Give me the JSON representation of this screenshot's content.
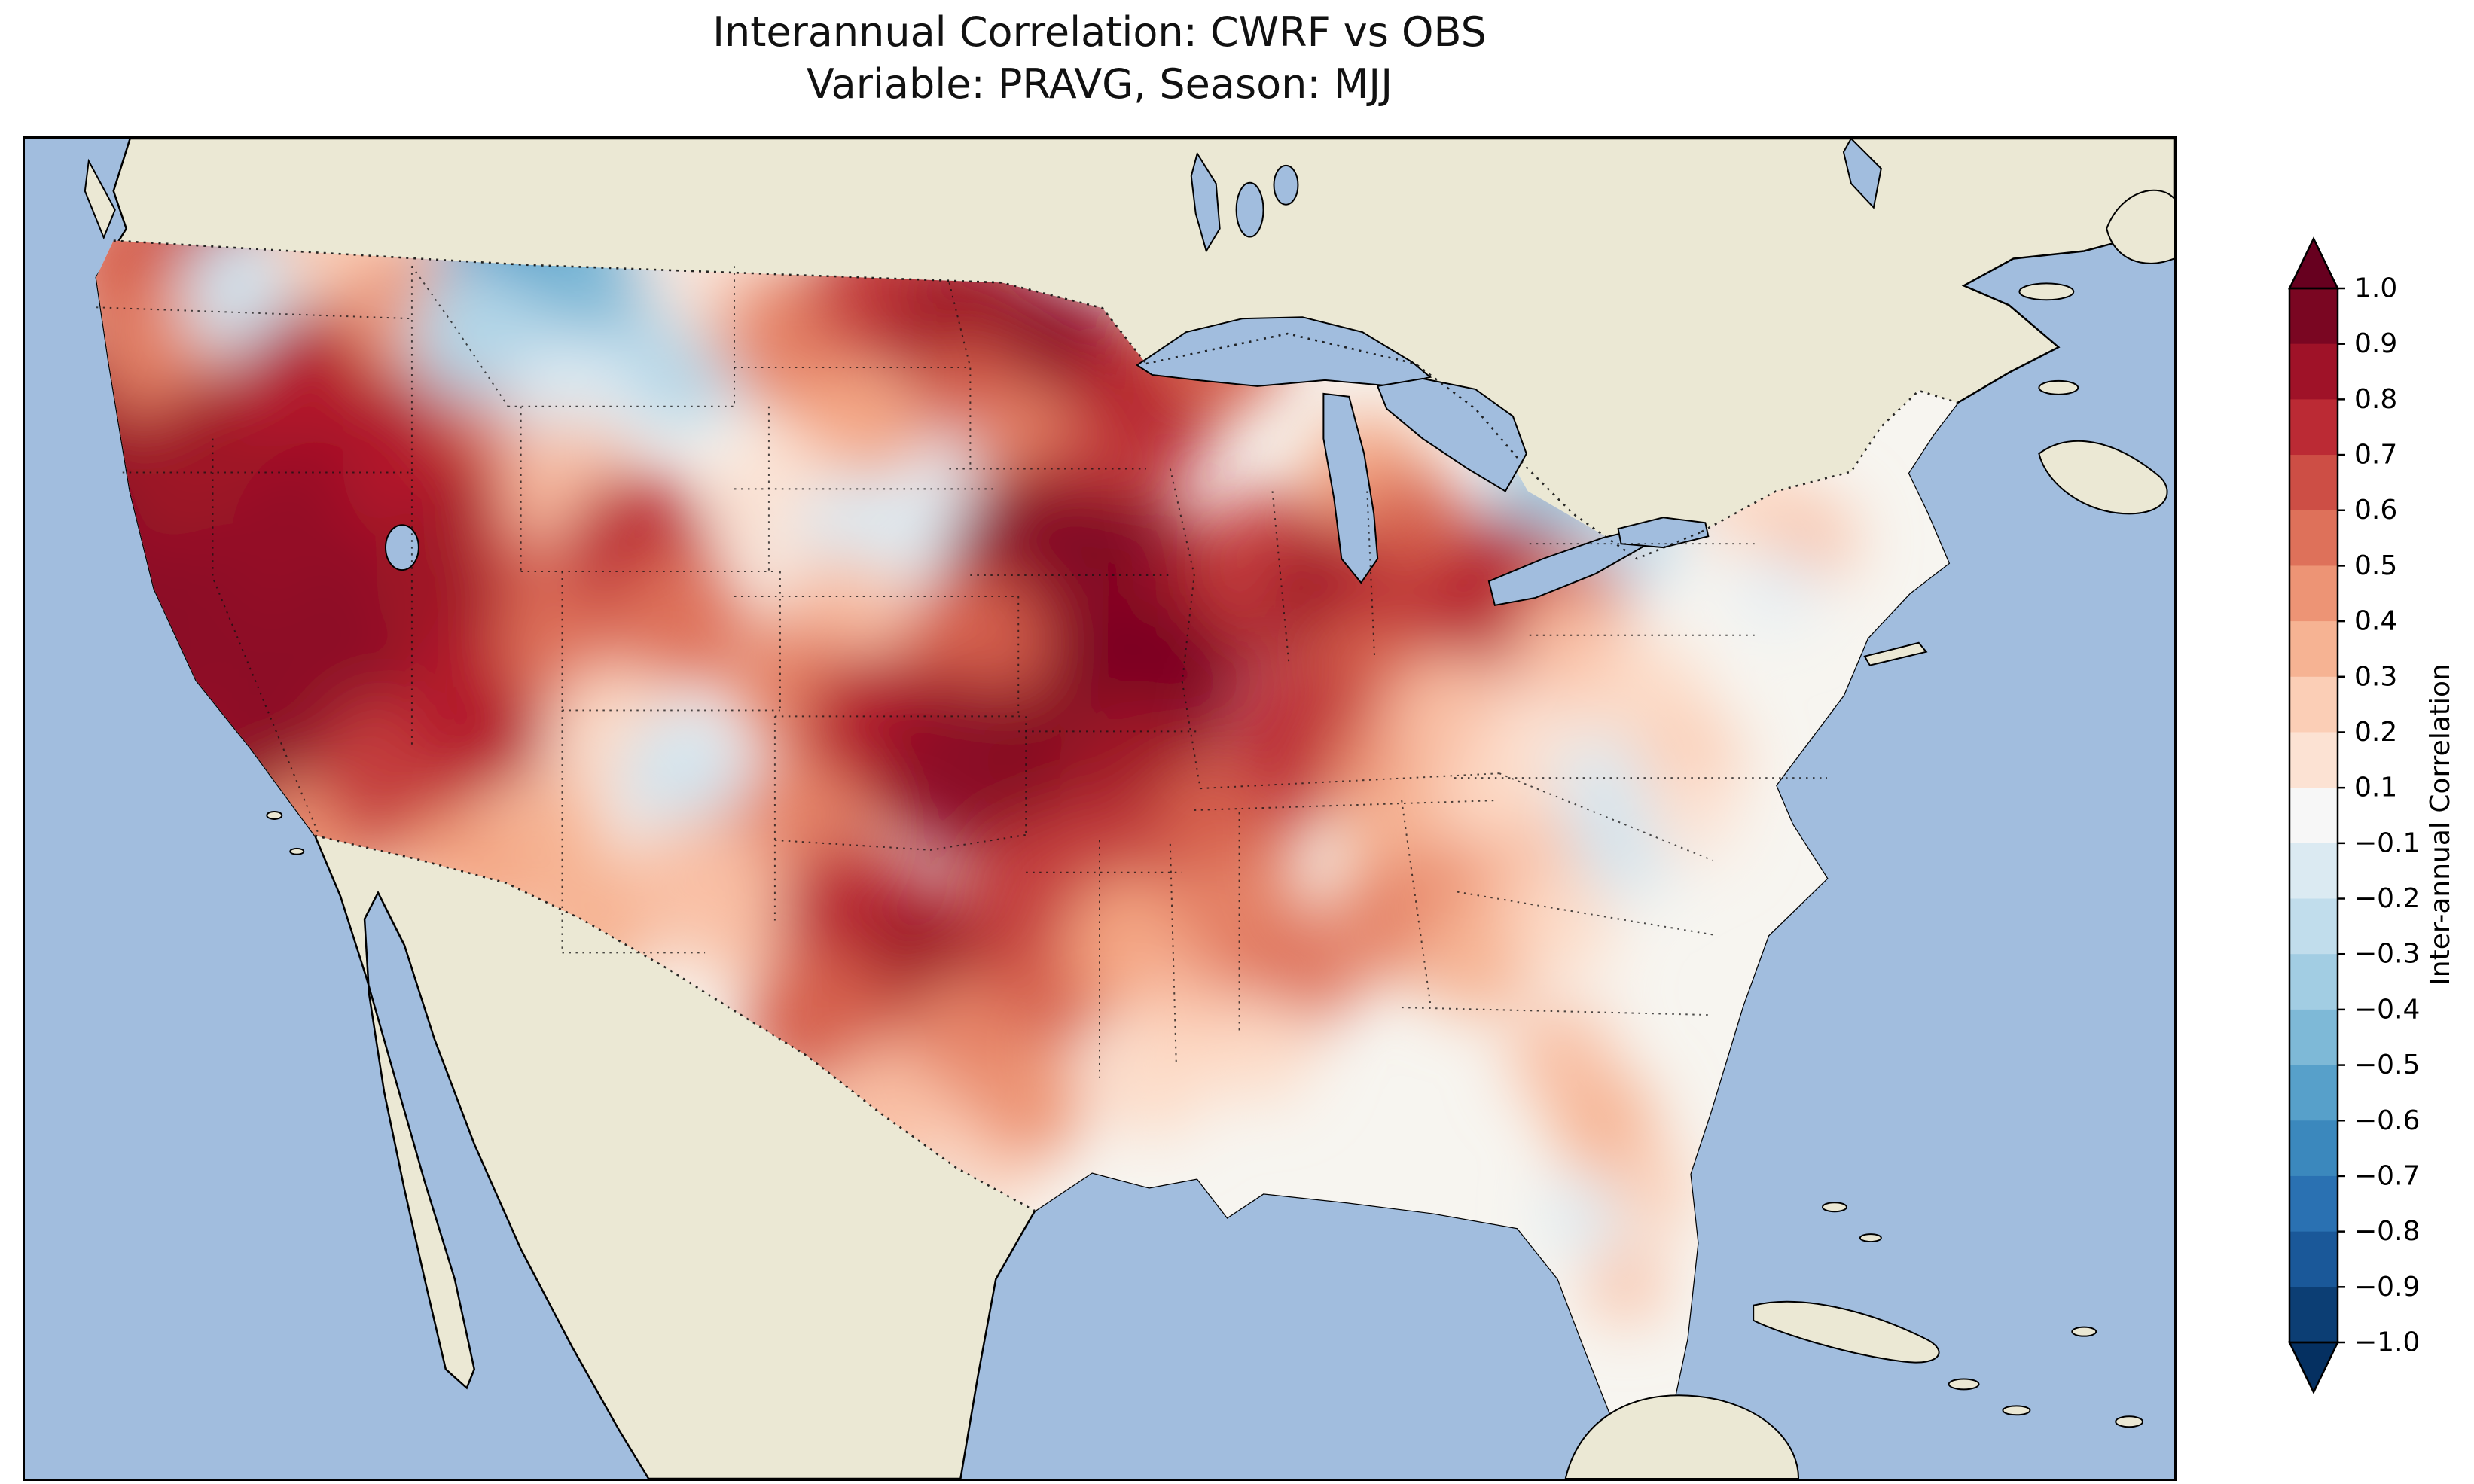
{
  "title": {
    "line1": "Interannual Correlation: CWRF vs OBS",
    "line2": "Variable: PRAVG, Season: MJJ"
  },
  "colorbar": {
    "label": "Inter-annual Correlation",
    "ticks": [
      "1.0",
      "0.9",
      "0.8",
      "0.7",
      "0.6",
      "0.5",
      "0.4",
      "0.3",
      "0.2",
      "0.1",
      "−0.1",
      "−0.2",
      "−0.3",
      "−0.4",
      "−0.5",
      "−0.6",
      "−0.7",
      "−0.8",
      "−0.9",
      "−1.0"
    ]
  },
  "colors": {
    "ocean": "#a1bdde",
    "land": "#ebe8d4",
    "field_base": "#f7f5f0",
    "frame": "#000000",
    "colormap_stops": [
      [
        -1,
        "#053061"
      ],
      [
        -0.8,
        "#2166ac"
      ],
      [
        -0.6,
        "#4393c3"
      ],
      [
        -0.4,
        "#92c5de"
      ],
      [
        -0.2,
        "#d1e5f0"
      ],
      [
        0,
        "#f7f7f7"
      ],
      [
        0.2,
        "#fddbc7"
      ],
      [
        0.4,
        "#f4a582"
      ],
      [
        0.6,
        "#d6604d"
      ],
      [
        0.8,
        "#b2182b"
      ],
      [
        1,
        "#67001f"
      ]
    ]
  },
  "chart_data": {
    "type": "heatmap",
    "title": "Interannual Correlation: CWRF vs OBS",
    "subtitle": "Variable: PRAVG, Season: MJJ",
    "model": "CWRF",
    "reference": "OBS",
    "variable": "PRAVG",
    "season": "MJJ",
    "colorbar_label": "Inter-annual Correlation",
    "value_range": [
      -1.0,
      1.0
    ],
    "colorbar_ticks": [
      1.0,
      0.9,
      0.8,
      0.7,
      0.6,
      0.5,
      0.4,
      0.3,
      0.2,
      0.1,
      -0.1,
      -0.2,
      -0.3,
      -0.4,
      -0.5,
      -0.6,
      -0.7,
      -0.8,
      -0.9,
      -1.0
    ],
    "field_points": [
      [
        0.055,
        0.1,
        110,
        0.6
      ],
      [
        0.09,
        0.06,
        80,
        0.7
      ],
      [
        0.035,
        0.21,
        110,
        0.85
      ],
      [
        0.07,
        0.16,
        100,
        0.5
      ],
      [
        0.105,
        0.115,
        90,
        -0.2
      ],
      [
        0.145,
        0.08,
        80,
        0.25
      ],
      [
        0.05,
        0.31,
        130,
        0.9
      ],
      [
        0.095,
        0.25,
        130,
        0.85
      ],
      [
        0.14,
        0.19,
        120,
        0.8
      ],
      [
        0.185,
        0.13,
        100,
        0.45
      ],
      [
        0.06,
        0.41,
        120,
        0.92
      ],
      [
        0.1,
        0.36,
        130,
        0.9
      ],
      [
        0.145,
        0.3,
        140,
        0.88
      ],
      [
        0.19,
        0.245,
        120,
        0.8
      ],
      [
        0.225,
        0.19,
        100,
        0.55
      ],
      [
        0.085,
        0.475,
        100,
        0.85
      ],
      [
        0.125,
        0.44,
        120,
        0.9
      ],
      [
        0.165,
        0.385,
        140,
        0.9
      ],
      [
        0.205,
        0.33,
        120,
        0.85
      ],
      [
        0.245,
        0.295,
        100,
        0.65
      ],
      [
        0.135,
        0.525,
        90,
        0.45
      ],
      [
        0.175,
        0.475,
        110,
        0.7
      ],
      [
        0.215,
        0.42,
        110,
        0.8
      ],
      [
        0.255,
        0.375,
        100,
        0.55
      ],
      [
        0.235,
        0.095,
        120,
        -0.55
      ],
      [
        0.275,
        0.13,
        110,
        -0.45
      ],
      [
        0.21,
        0.145,
        90,
        -0.3
      ],
      [
        0.305,
        0.165,
        90,
        -0.3
      ],
      [
        0.255,
        0.195,
        90,
        -0.15
      ],
      [
        0.315,
        0.095,
        80,
        0.1
      ],
      [
        0.345,
        0.135,
        90,
        0.25
      ],
      [
        0.255,
        0.26,
        90,
        0.3
      ],
      [
        0.285,
        0.305,
        100,
        0.75
      ],
      [
        0.305,
        0.36,
        90,
        0.55
      ],
      [
        0.275,
        0.445,
        90,
        0.2
      ],
      [
        0.305,
        0.475,
        80,
        -0.2
      ],
      [
        0.24,
        0.525,
        90,
        0.35
      ],
      [
        0.2,
        0.555,
        90,
        0.4
      ],
      [
        0.185,
        0.605,
        80,
        0.2
      ],
      [
        0.265,
        0.585,
        90,
        0.35
      ],
      [
        0.31,
        0.55,
        80,
        0.3
      ],
      [
        0.36,
        0.15,
        100,
        0.5
      ],
      [
        0.4,
        0.115,
        100,
        0.7
      ],
      [
        0.44,
        0.14,
        110,
        0.85
      ],
      [
        0.48,
        0.17,
        110,
        0.9
      ],
      [
        0.52,
        0.2,
        100,
        0.8
      ],
      [
        0.555,
        0.155,
        90,
        0.6
      ],
      [
        0.44,
        0.205,
        90,
        0.6
      ],
      [
        0.385,
        0.22,
        90,
        0.4
      ],
      [
        0.35,
        0.27,
        90,
        0.15
      ],
      [
        0.39,
        0.3,
        90,
        -0.15
      ],
      [
        0.435,
        0.265,
        80,
        -0.1
      ],
      [
        0.47,
        0.24,
        90,
        0.5
      ],
      [
        0.5,
        0.27,
        100,
        0.7
      ],
      [
        0.47,
        0.315,
        120,
        0.9
      ],
      [
        0.51,
        0.335,
        120,
        0.95
      ],
      [
        0.55,
        0.35,
        110,
        0.85
      ],
      [
        0.48,
        0.38,
        110,
        0.9
      ],
      [
        0.52,
        0.41,
        120,
        0.95
      ],
      [
        0.44,
        0.38,
        100,
        0.6
      ],
      [
        0.38,
        0.36,
        90,
        0.3
      ],
      [
        0.36,
        0.41,
        90,
        0.5
      ],
      [
        0.4,
        0.445,
        110,
        0.8
      ],
      [
        0.44,
        0.47,
        120,
        0.9
      ],
      [
        0.485,
        0.465,
        110,
        0.92
      ],
      [
        0.52,
        0.48,
        110,
        0.85
      ],
      [
        0.555,
        0.52,
        100,
        0.6
      ],
      [
        0.5,
        0.55,
        100,
        0.7
      ],
      [
        0.36,
        0.52,
        100,
        0.5
      ],
      [
        0.33,
        0.575,
        90,
        0.3
      ],
      [
        0.385,
        0.58,
        100,
        0.75
      ],
      [
        0.42,
        0.62,
        110,
        0.85
      ],
      [
        0.37,
        0.66,
        100,
        0.6
      ],
      [
        0.44,
        0.68,
        100,
        0.5
      ],
      [
        0.4,
        0.73,
        90,
        0.3
      ],
      [
        0.445,
        0.765,
        80,
        0.2
      ],
      [
        0.415,
        0.825,
        70,
        -0.25
      ],
      [
        0.465,
        0.72,
        80,
        0.45
      ],
      [
        0.48,
        0.625,
        90,
        0.6
      ],
      [
        0.47,
        0.56,
        90,
        0.7
      ],
      [
        0.515,
        0.6,
        90,
        0.4
      ],
      [
        0.545,
        0.645,
        80,
        0.3
      ],
      [
        0.525,
        0.7,
        80,
        0.2
      ],
      [
        0.565,
        0.585,
        90,
        0.5
      ],
      [
        0.59,
        0.625,
        80,
        0.55
      ],
      [
        0.575,
        0.68,
        70,
        0.2
      ],
      [
        0.58,
        0.32,
        100,
        0.7
      ],
      [
        0.615,
        0.35,
        110,
        0.85
      ],
      [
        0.645,
        0.33,
        100,
        0.8
      ],
      [
        0.675,
        0.365,
        100,
        0.75
      ],
      [
        0.625,
        0.41,
        100,
        0.6
      ],
      [
        0.595,
        0.45,
        100,
        0.75
      ],
      [
        0.635,
        0.475,
        90,
        0.5
      ],
      [
        0.665,
        0.435,
        90,
        0.3
      ],
      [
        0.625,
        0.25,
        80,
        0.4
      ],
      [
        0.645,
        0.285,
        70,
        0.6
      ],
      [
        0.71,
        0.27,
        80,
        -0.35
      ],
      [
        0.745,
        0.3,
        70,
        -0.25
      ],
      [
        0.775,
        0.26,
        60,
        -0.15
      ],
      [
        0.69,
        0.325,
        80,
        0.8
      ],
      [
        0.72,
        0.345,
        70,
        0.6
      ],
      [
        0.8,
        0.27,
        70,
        0.2
      ],
      [
        0.83,
        0.3,
        60,
        0.3
      ],
      [
        0.815,
        0.335,
        55,
        -0.1
      ],
      [
        0.72,
        0.385,
        80,
        0.3
      ],
      [
        0.755,
        0.42,
        80,
        0.2
      ],
      [
        0.705,
        0.455,
        80,
        0.15
      ],
      [
        0.735,
        0.485,
        70,
        -0.15
      ],
      [
        0.775,
        0.465,
        70,
        0.25
      ],
      [
        0.645,
        0.52,
        90,
        0.35
      ],
      [
        0.685,
        0.505,
        80,
        0.2
      ],
      [
        0.665,
        0.565,
        80,
        0.45
      ],
      [
        0.705,
        0.545,
        70,
        0.3
      ],
      [
        0.635,
        0.585,
        80,
        0.5
      ],
      [
        0.675,
        0.61,
        80,
        0.35
      ],
      [
        0.715,
        0.585,
        70,
        0.2
      ],
      [
        0.745,
        0.525,
        70,
        -0.2
      ],
      [
        0.775,
        0.505,
        60,
        0.15
      ],
      [
        0.715,
        0.685,
        70,
        0.3
      ],
      [
        0.735,
        0.735,
        70,
        0.35
      ],
      [
        0.755,
        0.785,
        60,
        0.25
      ],
      [
        0.725,
        0.805,
        50,
        -0.15
      ],
      [
        0.745,
        0.855,
        50,
        0.3
      ]
    ]
  }
}
